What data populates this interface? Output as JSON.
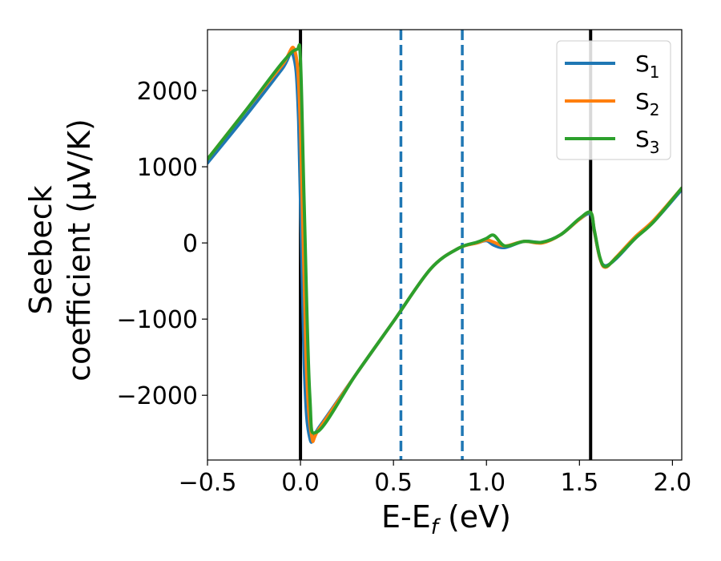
{
  "chart_data": {
    "type": "line",
    "title": "",
    "xlabel": {
      "main": "E-E",
      "sub": "f",
      "tail": " (eV)"
    },
    "ylabel": {
      "line1": "Seebeck",
      "line2": "coefficient  (μV/K)"
    },
    "xlim": [
      -0.5,
      2.05
    ],
    "ylim": [
      -2850,
      2800
    ],
    "xticks": [
      -0.5,
      0.0,
      0.5,
      1.0,
      1.5,
      2.0
    ],
    "xtick_labels": [
      "−0.5",
      "0.0",
      "0.5",
      "1.0",
      "1.5",
      "2.0"
    ],
    "yticks": [
      -2000,
      -1000,
      0,
      1000,
      2000
    ],
    "ytick_labels": [
      "−2000",
      "−1000",
      "0",
      "1000",
      "2000"
    ],
    "grid": false,
    "legend_position": "top-right",
    "vlines": [
      {
        "x": 0.0,
        "color": "#000000",
        "style": "solid"
      },
      {
        "x": 1.56,
        "color": "#000000",
        "style": "solid"
      },
      {
        "x": 0.54,
        "color": "#1f77b4",
        "style": "dashed"
      },
      {
        "x": 0.87,
        "color": "#1f77b4",
        "style": "dashed"
      }
    ],
    "series": [
      {
        "name": "S1",
        "label_main": "S",
        "label_sub": "1",
        "color": "#1f77b4",
        "x": [
          -0.5,
          -0.3,
          -0.1,
          -0.04,
          -0.01,
          0.02,
          0.05,
          0.1,
          0.3,
          0.5,
          0.7,
          0.85,
          0.95,
          1.0,
          1.04,
          1.1,
          1.2,
          1.3,
          1.4,
          1.5,
          1.56,
          1.58,
          1.61,
          1.64,
          1.7,
          1.8,
          1.9,
          2.05
        ],
        "y": [
          1050,
          1650,
          2280,
          2470,
          1600,
          -1600,
          -2560,
          -2420,
          -1720,
          -1030,
          -340,
          -70,
          0,
          30,
          -30,
          -60,
          20,
          10,
          110,
          310,
          380,
          150,
          -200,
          -300,
          -200,
          60,
          280,
          700
        ]
      },
      {
        "name": "S2",
        "label_main": "S",
        "label_sub": "2",
        "color": "#ff7f0e",
        "x": [
          -0.5,
          -0.3,
          -0.1,
          -0.03,
          0.0,
          0.03,
          0.06,
          0.1,
          0.3,
          0.5,
          0.7,
          0.85,
          0.95,
          1.0,
          1.04,
          1.1,
          1.2,
          1.3,
          1.4,
          1.5,
          1.56,
          1.58,
          1.61,
          1.64,
          1.7,
          1.8,
          1.9,
          2.05
        ],
        "y": [
          1100,
          1720,
          2330,
          2520,
          1500,
          -1500,
          -2530,
          -2440,
          -1720,
          -1030,
          -340,
          -70,
          0,
          40,
          10,
          -40,
          20,
          0,
          110,
          310,
          400,
          160,
          -200,
          -320,
          -180,
          80,
          300,
          720
        ]
      },
      {
        "name": "S3",
        "label_main": "S",
        "label_sub": "3",
        "color": "#2ca02c",
        "x": [
          -0.5,
          -0.3,
          -0.1,
          -0.02,
          0.0,
          0.02,
          0.05,
          0.09,
          0.3,
          0.5,
          0.7,
          0.85,
          0.95,
          1.0,
          1.04,
          1.1,
          1.2,
          1.3,
          1.4,
          1.5,
          1.56,
          1.58,
          1.61,
          1.64,
          1.7,
          1.8,
          1.9,
          2.05
        ],
        "y": [
          1100,
          1720,
          2360,
          2540,
          2400,
          500,
          -2000,
          -2480,
          -1720,
          -1030,
          -340,
          -70,
          10,
          60,
          100,
          -40,
          20,
          10,
          110,
          320,
          400,
          170,
          -190,
          -310,
          -190,
          60,
          280,
          720
        ]
      }
    ]
  }
}
